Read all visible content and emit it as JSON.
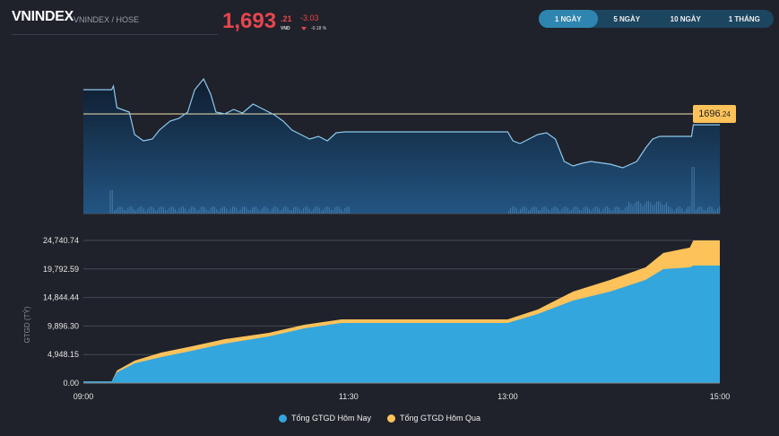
{
  "header": {
    "title": "VNINDEX",
    "subtitle": "VNINDEX / HOSE",
    "price_int": "1,693",
    "price_dec": ".21",
    "unit": "VND",
    "change": "-3.03",
    "change_pct": "-0.18 %",
    "direction": "down"
  },
  "tabs": [
    {
      "label": "1 NGÀY",
      "active": true
    },
    {
      "label": "5 NGÀY",
      "active": false
    },
    {
      "label": "10 NGÀY",
      "active": false
    },
    {
      "label": "1 THÁNG",
      "active": false
    }
  ],
  "colors": {
    "down": "#e8454f",
    "today": "#33a6de",
    "yesterday": "#fdc25a",
    "line": "#8ec9ee"
  },
  "price_chart": {
    "reference": {
      "int": "1696",
      "dec": ".24",
      "value": 1696.24
    },
    "series": [
      [
        "09:00",
        1702.99
      ],
      [
        "09:16",
        1702.99
      ],
      [
        "09:17",
        1703.99
      ],
      [
        "09:19",
        1697.99
      ],
      [
        "09:26",
        1696.74
      ],
      [
        "09:29",
        1690.49
      ],
      [
        "09:34",
        1688.74
      ],
      [
        "09:39",
        1689.24
      ],
      [
        "09:43",
        1691.74
      ],
      [
        "09:49",
        1694.24
      ],
      [
        "09:54",
        1694.99
      ],
      [
        "09:59",
        1696.74
      ],
      [
        "10:03",
        1702.99
      ],
      [
        "10:08",
        1705.99
      ],
      [
        "10:12",
        1701.74
      ],
      [
        "10:15",
        1696.74
      ],
      [
        "10:20",
        1696.24
      ],
      [
        "10:25",
        1697.49
      ],
      [
        "10:30",
        1696.49
      ],
      [
        "10:36",
        1698.99
      ],
      [
        "10:42",
        1697.49
      ],
      [
        "10:48",
        1695.99
      ],
      [
        "10:53",
        1694.24
      ],
      [
        "10:58",
        1691.74
      ],
      [
        "11:03",
        1690.49
      ],
      [
        "11:08",
        1689.24
      ],
      [
        "11:13",
        1689.99
      ],
      [
        "11:18",
        1688.74
      ],
      [
        "11:23",
        1690.99
      ],
      [
        "11:28",
        1691.24
      ],
      [
        "11:30",
        1691.24
      ],
      [
        "13:00",
        1691.24
      ],
      [
        "13:03",
        1688.74
      ],
      [
        "13:07",
        1687.99
      ],
      [
        "13:12",
        1689.24
      ],
      [
        "13:17",
        1690.49
      ],
      [
        "13:22",
        1690.99
      ],
      [
        "13:27",
        1689.24
      ],
      [
        "13:32",
        1682.99
      ],
      [
        "13:37",
        1681.74
      ],
      [
        "13:42",
        1682.49
      ],
      [
        "13:47",
        1682.99
      ],
      [
        "13:58",
        1682.24
      ],
      [
        "14:05",
        1681.24
      ],
      [
        "14:13",
        1682.99
      ],
      [
        "14:18",
        1686.74
      ],
      [
        "14:22",
        1689.24
      ],
      [
        "14:26",
        1689.99
      ],
      [
        "14:44",
        1689.99
      ],
      [
        "14:45",
        1693.21
      ],
      [
        "15:00",
        1693.21
      ]
    ]
  },
  "chart_data": {
    "type": "area",
    "ylabel": "GTGD (TỶ)",
    "yticks": [
      "0.00",
      "4,948.15",
      "9,896.30",
      "14,844.44",
      "19,792.59",
      "24,740.74"
    ],
    "ylim": [
      0,
      24740.74
    ],
    "xticks": [
      "09:00",
      "11:30",
      "13:00",
      "15:00"
    ],
    "xlim": [
      "09:00",
      "15:00"
    ],
    "grid": true,
    "legend_position": "bottom",
    "x": [
      "09:00",
      "09:16",
      "09:19",
      "09:29",
      "09:44",
      "09:59",
      "10:20",
      "10:45",
      "11:05",
      "11:26",
      "11:30",
      "13:00",
      "13:17",
      "13:37",
      "13:58",
      "14:18",
      "14:28",
      "14:43",
      "14:45",
      "15:00"
    ],
    "series": [
      {
        "name": "Tổng GTGD Hôm Nay",
        "values": [
          300,
          300,
          1870,
          3420,
          4510,
          5450,
          6850,
          8090,
          9490,
          10430,
          10430,
          10430,
          11980,
          14320,
          15870,
          17890,
          19760,
          20070,
          20380,
          20380
        ]
      },
      {
        "name": "Tổng GTGD Hôm Qua",
        "values": [
          300,
          300,
          2180,
          3890,
          5290,
          6220,
          7620,
          8710,
          10110,
          11050,
          11050,
          11050,
          12760,
          15870,
          17890,
          20070,
          22560,
          23500,
          24740,
          24740
        ]
      }
    ]
  }
}
